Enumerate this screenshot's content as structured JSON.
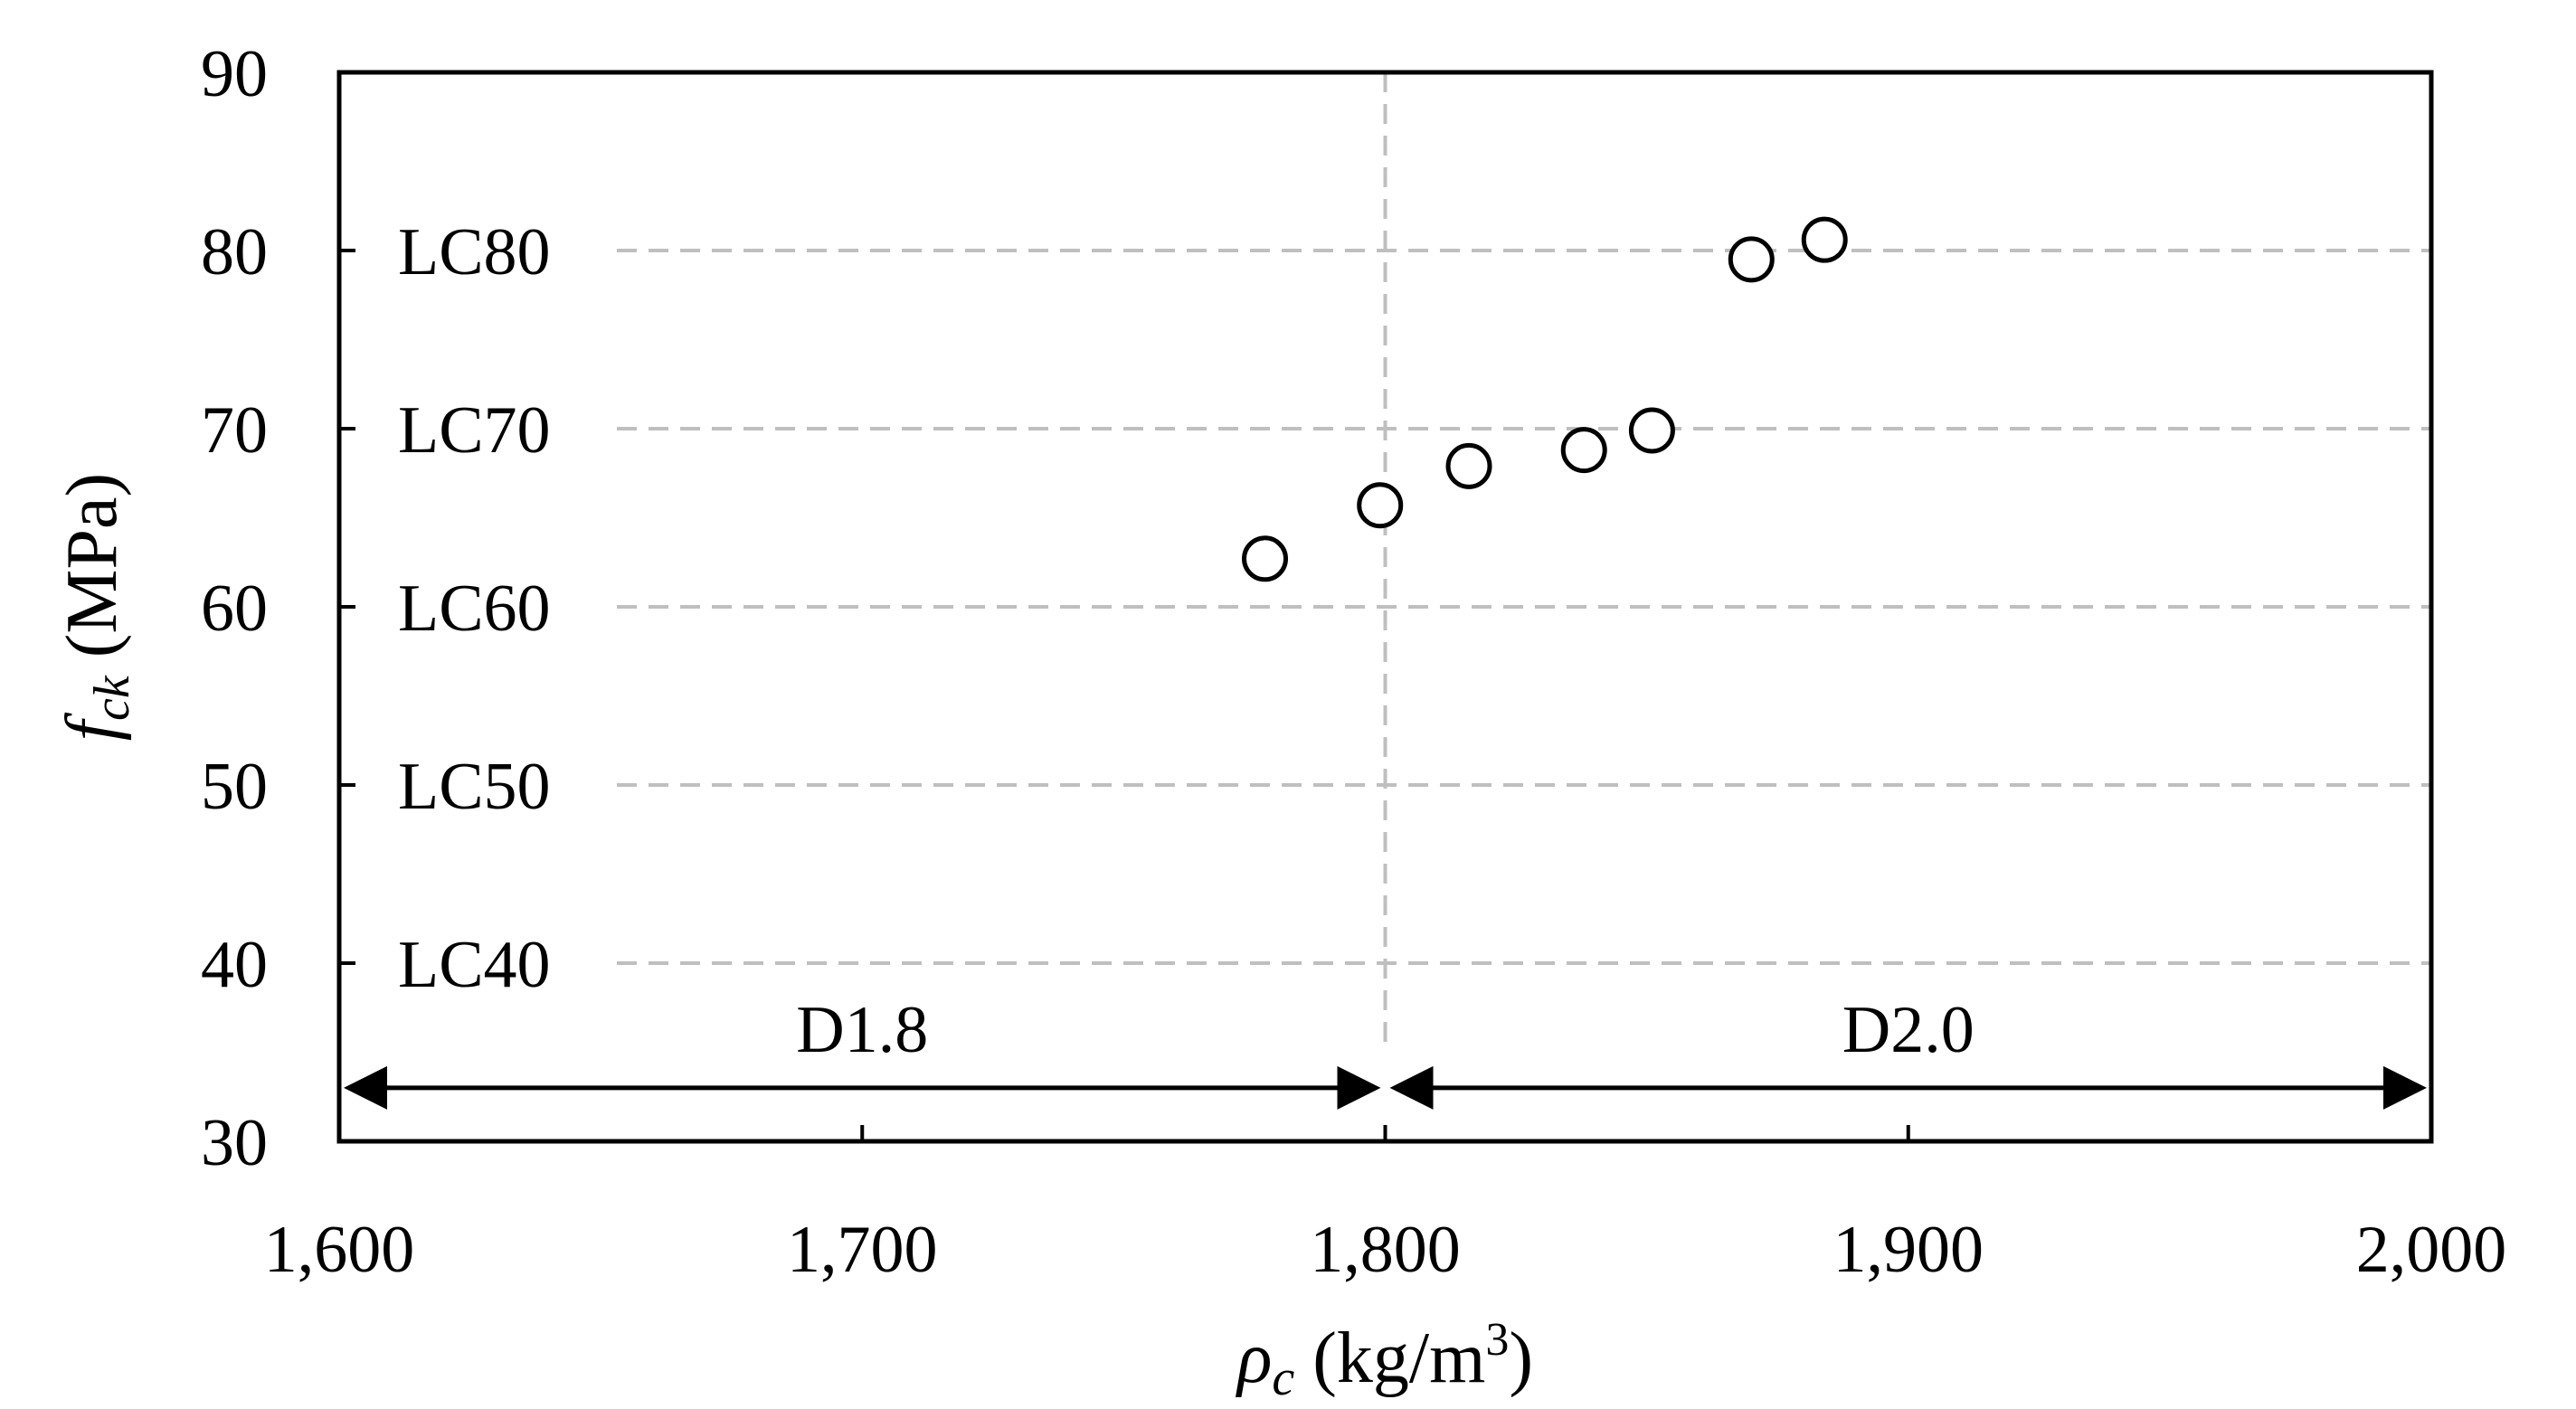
{
  "chart_data": {
    "type": "scatter",
    "xlabel": {
      "symbol": "ρ",
      "subscript": "c",
      "unit_open": " (kg/m",
      "unit_sup": "3",
      "unit_close": ")"
    },
    "ylabel": {
      "symbol": "f",
      "subscript": "ck",
      "unit": " (MPa)"
    },
    "xlim": [
      1600,
      2000
    ],
    "ylim": [
      30,
      90
    ],
    "x_ticks": [
      1600,
      1700,
      1800,
      1900,
      2000
    ],
    "x_tick_labels": [
      "1,600",
      "1,700",
      "1,800",
      "1,900",
      "2,000"
    ],
    "y_ticks": [
      30,
      40,
      50,
      60,
      70,
      80,
      90
    ],
    "y_tick_labels": [
      "30",
      "40",
      "50",
      "60",
      "70",
      "80",
      "90"
    ],
    "strength_classes": [
      {
        "label": "LC40",
        "y": 40
      },
      {
        "label": "LC50",
        "y": 50
      },
      {
        "label": "LC60",
        "y": 60
      },
      {
        "label": "LC70",
        "y": 70
      },
      {
        "label": "LC80",
        "y": 80
      }
    ],
    "vertical_reference": {
      "x": 1800
    },
    "density_classes": [
      {
        "label": "D1.8",
        "x_from": 1600,
        "x_to": 1800,
        "arrow_y": 33
      },
      {
        "label": "D2.0",
        "x_from": 1800,
        "x_to": 2000,
        "arrow_y": 33
      }
    ],
    "points": [
      {
        "x": 1777,
        "y": 62.7
      },
      {
        "x": 1799,
        "y": 65.7
      },
      {
        "x": 1816,
        "y": 67.9
      },
      {
        "x": 1838,
        "y": 68.8
      },
      {
        "x": 1851,
        "y": 69.9
      },
      {
        "x": 1870,
        "y": 79.5
      },
      {
        "x": 1884,
        "y": 80.6
      }
    ],
    "marker": "open-circle",
    "grid": "horizontal at strength classes, vertical at x = 1800 (dashed grey)",
    "colors": {
      "marker_edge": "#000000",
      "marker_fill": "#ffffff",
      "grid": "#bfbfbf"
    }
  }
}
